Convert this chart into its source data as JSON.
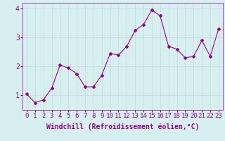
{
  "x": [
    0,
    1,
    2,
    3,
    4,
    5,
    6,
    7,
    8,
    9,
    10,
    11,
    12,
    13,
    14,
    15,
    16,
    17,
    18,
    19,
    20,
    21,
    22,
    23
  ],
  "y": [
    1.05,
    0.75,
    0.85,
    1.25,
    2.05,
    1.95,
    1.75,
    1.3,
    1.3,
    1.7,
    2.45,
    2.4,
    2.7,
    3.25,
    3.45,
    3.95,
    3.75,
    2.7,
    2.6,
    2.3,
    2.35,
    2.9,
    2.35,
    3.3
  ],
  "line_color": "#990099",
  "marker": "D",
  "marker_size": 2,
  "bg_color": "#d6f0f0",
  "grid_color": "#b8d8d8",
  "xlabel": "Windchill (Refroidissement éolien,°C)",
  "xlabel_color": "#990099",
  "tick_color": "#990099",
  "xlim": [
    -0.5,
    23.5
  ],
  "ylim": [
    0.5,
    4.2
  ],
  "yticks": [
    1,
    2,
    3,
    4
  ],
  "xticks": [
    0,
    1,
    2,
    3,
    4,
    5,
    6,
    7,
    8,
    9,
    10,
    11,
    12,
    13,
    14,
    15,
    16,
    17,
    18,
    19,
    20,
    21,
    22,
    23
  ],
  "xtick_labels": [
    "0",
    "1",
    "2",
    "3",
    "4",
    "5",
    "6",
    "7",
    "8",
    "9",
    "10",
    "11",
    "12",
    "13",
    "14",
    "15",
    "16",
    "17",
    "18",
    "19",
    "20",
    "21",
    "22",
    "23"
  ],
  "font_size_xlabel": 7,
  "font_size_tick": 6.5
}
